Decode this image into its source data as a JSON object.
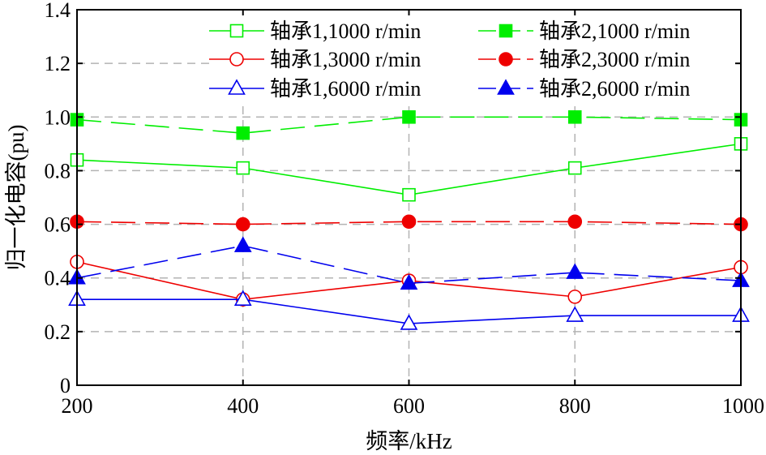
{
  "chart_data": {
    "type": "line",
    "xlabel": "频率/kHz",
    "ylabel": "归一化电容(pu)",
    "x": [
      200,
      400,
      600,
      800,
      1000
    ],
    "xlim": [
      200,
      1000
    ],
    "ylim": [
      0,
      1.4
    ],
    "xticks": [
      "200",
      "400",
      "600",
      "800",
      "1000"
    ],
    "yticks": [
      "0",
      "0.2",
      "0.4",
      "0.6",
      "0.8",
      "1.0",
      "1.2",
      "1.4"
    ],
    "grid": true,
    "legend_position": "top-right",
    "series": [
      {
        "name": "轴承1,1000 r/min",
        "values": [
          0.84,
          0.81,
          0.71,
          0.81,
          0.9
        ],
        "color": "#00ee00",
        "marker": "square-open",
        "line": "solid"
      },
      {
        "name": "轴承2,1000 r/min",
        "values": [
          0.99,
          0.94,
          1.0,
          1.0,
          0.99
        ],
        "color": "#00ee00",
        "marker": "square-filled",
        "line": "dashed"
      },
      {
        "name": "轴承1,3000 r/min",
        "values": [
          0.46,
          0.32,
          0.39,
          0.33,
          0.44
        ],
        "color": "#ee0000",
        "marker": "circle-open",
        "line": "solid"
      },
      {
        "name": "轴承2,3000 r/min",
        "values": [
          0.61,
          0.6,
          0.61,
          0.61,
          0.6
        ],
        "color": "#ee0000",
        "marker": "circle-filled",
        "line": "dashed"
      },
      {
        "name": "轴承1,6000 r/min",
        "values": [
          0.32,
          0.32,
          0.23,
          0.26,
          0.26
        ],
        "color": "#0000ee",
        "marker": "triangle-open",
        "line": "solid"
      },
      {
        "name": "轴承2,6000 r/min",
        "values": [
          0.4,
          0.52,
          0.38,
          0.42,
          0.39
        ],
        "color": "#0000ee",
        "marker": "triangle-filled",
        "line": "dashed"
      }
    ]
  }
}
